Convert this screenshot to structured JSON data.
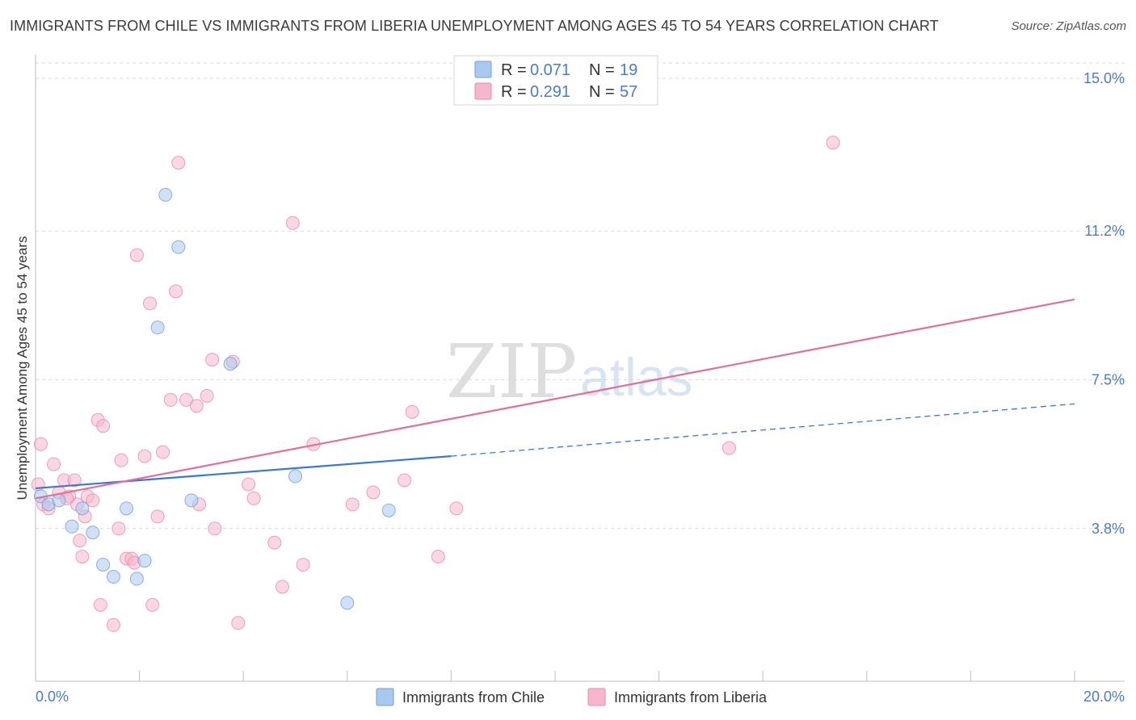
{
  "title": "IMMIGRANTS FROM CHILE VS IMMIGRANTS FROM LIBERIA UNEMPLOYMENT AMONG AGES 45 TO 54 YEARS CORRELATION CHART",
  "source": "Source: ZipAtlas.com",
  "watermark": {
    "zip": "ZIP",
    "atlas": "atlas"
  },
  "legend": {
    "r_label": "R =",
    "n_label": "N =",
    "chile": {
      "r": "0.071",
      "n": "19"
    },
    "liberia": {
      "r": "0.291",
      "n": "57"
    }
  },
  "bottom_legend": {
    "chile": "Immigrants from Chile",
    "liberia": "Immigrants from Liberia"
  },
  "colors": {
    "chile_fill": "#a9c8f0",
    "chile_stroke": "#6e9fdb",
    "chile_line": "#3a78d0",
    "liberia_fill": "#f6b6cb",
    "liberia_stroke": "#e98aab",
    "liberia_line": "#e06f99",
    "grid": "#d9d9d9",
    "tick_label": "#4a7cc9"
  },
  "chart_data": {
    "type": "scatter",
    "title": "IMMIGRANTS FROM CHILE VS IMMIGRANTS FROM LIBERIA UNEMPLOYMENT AMONG AGES 45 TO 54 YEARS CORRELATION CHART",
    "xlabel": "",
    "ylabel": "Unemployment Among Ages 45 to 54 years",
    "xlim": [
      0,
      20
    ],
    "ylim": [
      0,
      15.5
    ],
    "x_tick_labels": [
      "0.0%",
      "20.0%"
    ],
    "y_ticks": [
      3.8,
      7.5,
      11.2,
      15.0
    ],
    "y_tick_labels": [
      "3.8%",
      "7.5%",
      "11.2%",
      "15.0%"
    ],
    "grid": true,
    "legend_position": "top-center",
    "series": [
      {
        "name": "Immigrants from Chile",
        "points": [
          [
            0.1,
            4.6
          ],
          [
            0.25,
            4.4
          ],
          [
            0.45,
            4.5
          ],
          [
            0.7,
            3.85
          ],
          [
            0.9,
            4.3
          ],
          [
            1.1,
            3.7
          ],
          [
            1.3,
            2.9
          ],
          [
            1.5,
            2.6
          ],
          [
            1.75,
            4.3
          ],
          [
            1.95,
            2.55
          ],
          [
            2.1,
            3.0
          ],
          [
            2.35,
            8.8
          ],
          [
            2.5,
            12.1
          ],
          [
            2.75,
            10.8
          ],
          [
            3.0,
            4.5
          ],
          [
            3.75,
            7.9
          ],
          [
            5.0,
            5.1
          ],
          [
            6.0,
            1.95
          ],
          [
            6.8,
            4.25
          ]
        ],
        "trend": {
          "x_start": 0.0,
          "y_start": 4.8,
          "x_solid_end": 8.0,
          "y_solid_end": 5.6,
          "x_dash_end": 20.0,
          "y_dash_end": 6.9
        }
      },
      {
        "name": "Immigrants from Liberia",
        "points": [
          [
            0.05,
            4.9
          ],
          [
            0.15,
            4.4
          ],
          [
            0.25,
            4.3
          ],
          [
            0.35,
            5.4
          ],
          [
            0.45,
            4.7
          ],
          [
            0.55,
            5.0
          ],
          [
            0.65,
            4.6
          ],
          [
            0.75,
            5.0
          ],
          [
            0.8,
            4.4
          ],
          [
            0.85,
            3.5
          ],
          [
            0.9,
            3.1
          ],
          [
            0.95,
            4.1
          ],
          [
            1.0,
            4.6
          ],
          [
            1.1,
            4.5
          ],
          [
            1.2,
            6.5
          ],
          [
            1.3,
            6.35
          ],
          [
            1.25,
            1.9
          ],
          [
            1.5,
            1.4
          ],
          [
            1.6,
            3.8
          ],
          [
            1.65,
            5.5
          ],
          [
            1.75,
            3.05
          ],
          [
            1.85,
            3.05
          ],
          [
            1.9,
            2.95
          ],
          [
            1.95,
            10.6
          ],
          [
            2.1,
            5.6
          ],
          [
            2.2,
            9.4
          ],
          [
            2.25,
            1.9
          ],
          [
            2.35,
            4.1
          ],
          [
            2.45,
            5.7
          ],
          [
            2.6,
            7.0
          ],
          [
            2.7,
            9.7
          ],
          [
            2.75,
            12.9
          ],
          [
            2.9,
            7.0
          ],
          [
            3.1,
            6.85
          ],
          [
            3.15,
            4.4
          ],
          [
            3.3,
            7.1
          ],
          [
            3.4,
            8.0
          ],
          [
            3.45,
            3.8
          ],
          [
            3.8,
            7.95
          ],
          [
            3.9,
            1.45
          ],
          [
            4.1,
            4.9
          ],
          [
            4.2,
            4.55
          ],
          [
            4.6,
            3.45
          ],
          [
            4.75,
            2.35
          ],
          [
            4.95,
            11.4
          ],
          [
            5.15,
            2.9
          ],
          [
            5.35,
            5.9
          ],
          [
            6.1,
            4.4
          ],
          [
            6.5,
            4.7
          ],
          [
            7.1,
            5.0
          ],
          [
            7.25,
            6.7
          ],
          [
            7.75,
            3.1
          ],
          [
            8.1,
            4.3
          ],
          [
            13.35,
            5.8
          ],
          [
            15.35,
            13.4
          ],
          [
            0.1,
            5.9
          ],
          [
            0.6,
            4.55
          ]
        ],
        "trend": {
          "x_start": 0.0,
          "y_start": 4.55,
          "x_end": 20.0,
          "y_end": 9.5
        }
      }
    ]
  }
}
